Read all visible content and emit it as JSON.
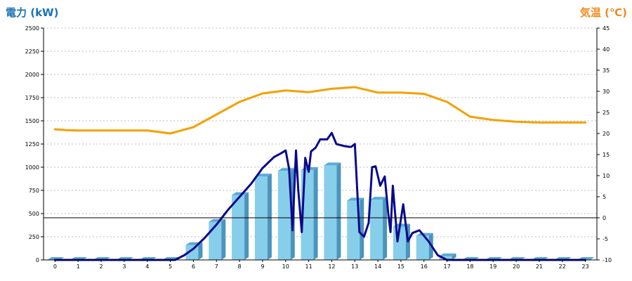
{
  "chart_data": {
    "type": "bar",
    "left_axis_title": "電力 (kW)",
    "right_axis_title": "気温 (℃)",
    "categories": [
      "0",
      "1",
      "2",
      "3",
      "4",
      "5",
      "6",
      "7",
      "8",
      "9",
      "10",
      "11",
      "12",
      "13",
      "14",
      "15",
      "16",
      "17",
      "18",
      "19",
      "20",
      "21",
      "22",
      "23"
    ],
    "ylim_left": [
      0,
      2500
    ],
    "ylim_right": [
      -10,
      45
    ],
    "left_ticks": [
      "0",
      "250",
      "500",
      "750",
      "1000",
      "1250",
      "1500",
      "1750",
      "2000",
      "2250",
      "2500"
    ],
    "right_ticks": [
      "-10",
      "-5",
      "0",
      "5",
      "10",
      "15",
      "20",
      "25",
      "30",
      "35",
      "40",
      "45"
    ],
    "grid": true,
    "series": [
      {
        "kind": "bar",
        "axis": "left",
        "values": [
          0,
          0,
          0,
          0,
          0,
          0,
          160,
          410,
          700,
          900,
          960,
          970,
          1020,
          640,
          650,
          360,
          260,
          40,
          0,
          0,
          0,
          0,
          0,
          0
        ]
      },
      {
        "kind": "line",
        "axis": "right",
        "color": "#f5a000",
        "x": [
          0,
          0.5,
          1,
          2,
          3,
          4,
          5,
          6,
          7,
          8,
          9,
          10,
          11,
          12,
          13,
          14,
          15,
          16,
          17,
          18,
          19,
          20,
          21,
          22,
          23
        ],
        "values": [
          21,
          20.8,
          20.7,
          20.7,
          20.7,
          20.7,
          20,
          21.5,
          24.5,
          27.5,
          29.5,
          30.2,
          29.8,
          30.6,
          31,
          29.7,
          29.7,
          29.4,
          27.5,
          24,
          23.2,
          22.8,
          22.6,
          22.6,
          22.6
        ]
      },
      {
        "kind": "line",
        "axis": "left",
        "color": "#0a0a8c",
        "x": [
          0,
          5.2,
          5.6,
          6,
          6.5,
          7,
          7.5,
          8,
          8.5,
          9,
          9.5,
          9.8,
          10,
          10.15,
          10.3,
          10.45,
          10.55,
          10.7,
          10.85,
          11,
          11.1,
          11.3,
          11.5,
          11.8,
          12,
          12.2,
          12.5,
          12.75,
          12.85,
          13,
          13.2,
          13.4,
          13.6,
          13.75,
          13.9,
          14.1,
          14.3,
          14.45,
          14.55,
          14.65,
          14.85,
          15.1,
          15.3,
          15.5,
          15.8,
          16.2,
          16.6,
          17,
          23
        ],
        "values": [
          0,
          0,
          50,
          120,
          240,
          380,
          540,
          680,
          820,
          990,
          1110,
          1150,
          1180,
          980,
          320,
          1180,
          750,
          300,
          1100,
          950,
          1170,
          1210,
          1300,
          1300,
          1370,
          1250,
          1230,
          1220,
          1220,
          1250,
          300,
          250,
          400,
          1000,
          1010,
          800,
          900,
          500,
          300,
          800,
          200,
          600,
          200,
          290,
          320,
          200,
          50,
          0,
          0
        ]
      }
    ]
  }
}
